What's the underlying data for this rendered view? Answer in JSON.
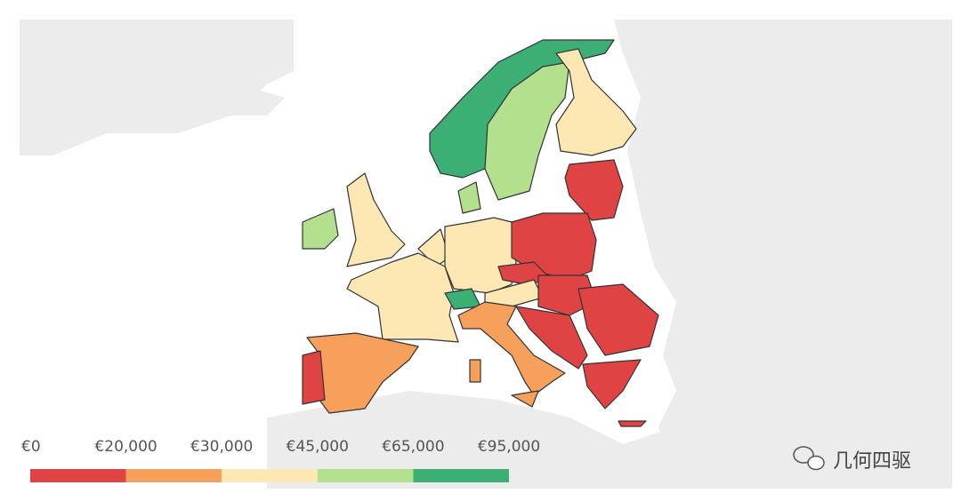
{
  "legend": {
    "labels": [
      "€0",
      "€20,000",
      "€30,000",
      "€45,000",
      "€65,000",
      "€95,000"
    ],
    "colors": [
      "#e04343",
      "#f6a05c",
      "#fde8b3",
      "#b3e08d",
      "#3caf74"
    ]
  },
  "watermark": "几何四驱"
}
